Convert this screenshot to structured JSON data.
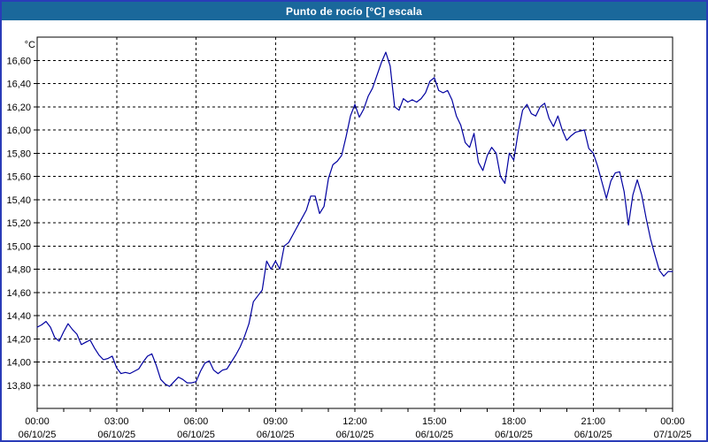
{
  "window": {
    "title": "Punto de rocío [°C] escala"
  },
  "colors": {
    "title_bar_bg": "#1A689B",
    "title_text": "#FFFFFF",
    "window_border": "#2A3CB8",
    "plot_background": "#FFFFFF",
    "grid": "#000000",
    "axis": "#000000",
    "series_line": "#0000A0",
    "axis_label_text": "#000000"
  },
  "chart_data": {
    "type": "line",
    "title": "Punto de rocío [°C] escala",
    "unit_label": "°C",
    "legend": "none",
    "grid": "dashed",
    "ylim": [
      13.6,
      16.8
    ],
    "y_ticks": [
      13.8,
      14.0,
      14.2,
      14.4,
      14.6,
      14.8,
      15.0,
      15.2,
      15.4,
      15.6,
      15.8,
      16.0,
      16.2,
      16.4,
      16.6
    ],
    "y_tick_labels": [
      "13,80",
      "14,00",
      "14,20",
      "14,40",
      "14,60",
      "14,80",
      "15,00",
      "15,20",
      "15,40",
      "15,60",
      "15,80",
      "16,00",
      "16,20",
      "16,40",
      "16,60"
    ],
    "x_axis": {
      "start_minutes": 0,
      "end_minutes": 1440,
      "minor_tick_hours": 1,
      "major_tick_hours": 3
    },
    "x_ticks": [
      {
        "hour": 0,
        "time": "00:00",
        "date": "06/10/25"
      },
      {
        "hour": 3,
        "time": "03:00",
        "date": "06/10/25"
      },
      {
        "hour": 6,
        "time": "06:00",
        "date": "06/10/25"
      },
      {
        "hour": 9,
        "time": "09:00",
        "date": "06/10/25"
      },
      {
        "hour": 12,
        "time": "12:00",
        "date": "06/10/25"
      },
      {
        "hour": 15,
        "time": "15:00",
        "date": "06/10/25"
      },
      {
        "hour": 18,
        "time": "18:00",
        "date": "06/10/25"
      },
      {
        "hour": 21,
        "time": "21:00",
        "date": "06/10/25"
      },
      {
        "hour": 24,
        "time": "00:00",
        "date": "07/10/25"
      }
    ],
    "series": [
      {
        "name": "Punto de rocío",
        "sample_interval_minutes": 10,
        "start_time": "00:00",
        "values": [
          14.3,
          14.32,
          14.35,
          14.3,
          14.21,
          14.18,
          14.26,
          14.33,
          14.28,
          14.24,
          14.15,
          14.17,
          14.19,
          14.12,
          14.06,
          14.02,
          14.03,
          14.05,
          13.95,
          13.9,
          13.91,
          13.9,
          13.92,
          13.94,
          14.0,
          14.05,
          14.07,
          13.97,
          13.85,
          13.81,
          13.79,
          13.83,
          13.87,
          13.85,
          13.82,
          13.82,
          13.83,
          13.92,
          13.99,
          14.01,
          13.93,
          13.9,
          13.93,
          13.94,
          14.0,
          14.06,
          14.13,
          14.22,
          14.33,
          14.52,
          14.57,
          14.62,
          14.87,
          14.8,
          14.87,
          14.8,
          15.0,
          15.03,
          15.1,
          15.17,
          15.24,
          15.31,
          15.43,
          15.43,
          15.28,
          15.34,
          15.58,
          15.7,
          15.73,
          15.78,
          15.94,
          16.12,
          16.22,
          16.11,
          16.18,
          16.29,
          16.36,
          16.47,
          16.58,
          16.67,
          16.55,
          16.2,
          16.17,
          16.27,
          16.24,
          16.26,
          16.24,
          16.27,
          16.32,
          16.42,
          16.45,
          16.34,
          16.32,
          16.34,
          16.26,
          16.12,
          16.04,
          15.89,
          15.85,
          15.97,
          15.72,
          15.65,
          15.78,
          15.85,
          15.8,
          15.6,
          15.54,
          15.8,
          15.74,
          15.98,
          16.17,
          16.22,
          16.14,
          16.12,
          16.2,
          16.23,
          16.1,
          16.03,
          16.12,
          16.0,
          15.91,
          15.95,
          15.98,
          15.99,
          16.0,
          15.84,
          15.8,
          15.69,
          15.55,
          15.41,
          15.56,
          15.63,
          15.64,
          15.47,
          15.18,
          15.44,
          15.57,
          15.44,
          15.24,
          15.06,
          14.92,
          14.79,
          14.74,
          14.78,
          14.78
        ]
      }
    ]
  }
}
